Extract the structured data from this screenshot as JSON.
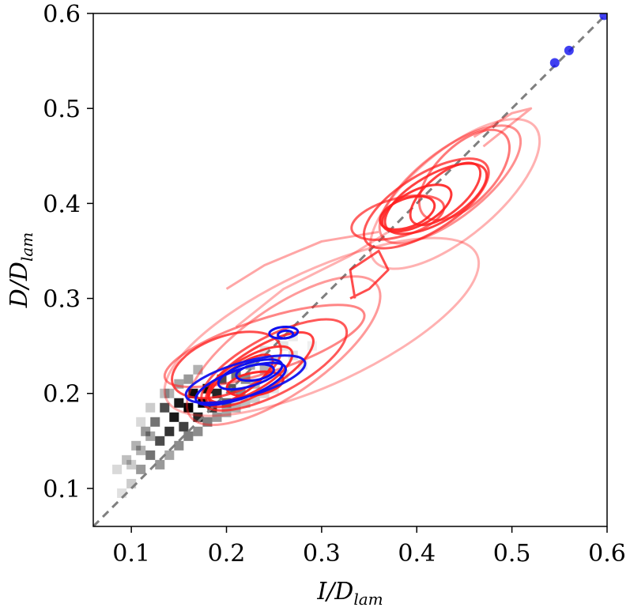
{
  "chart_data": {
    "type": "scatter",
    "xlabel": "I/D",
    "xlabel_subscript": "lam",
    "ylabel": "D/D",
    "ylabel_subscript": "lam",
    "xlim": [
      0.06,
      0.6
    ],
    "ylim": [
      0.06,
      0.6
    ],
    "xticks": [
      "0.1",
      "0.2",
      "0.3",
      "0.4",
      "0.5",
      "0.6"
    ],
    "yticks": [
      "0.1",
      "0.2",
      "0.3",
      "0.4",
      "0.5",
      "0.6"
    ],
    "grid": false,
    "legend": "none",
    "colors": {
      "reference": "#7f7f7f",
      "red": "#ff2020",
      "blue": "#1010ee",
      "density": "#000000"
    },
    "reference_line": {
      "style": "dashed",
      "points": [
        [
          0.06,
          0.06
        ],
        [
          0.6,
          0.6
        ]
      ]
    },
    "series": [
      {
        "kind": "density-heatmap",
        "color": "#000000",
        "cells": [
          [
            0.085,
            0.12,
            0.15
          ],
          [
            0.095,
            0.13,
            0.25
          ],
          [
            0.1,
            0.105,
            0.2
          ],
          [
            0.105,
            0.145,
            0.3
          ],
          [
            0.11,
            0.12,
            0.4
          ],
          [
            0.115,
            0.16,
            0.4
          ],
          [
            0.12,
            0.135,
            0.55
          ],
          [
            0.125,
            0.17,
            0.55
          ],
          [
            0.13,
            0.15,
            0.7
          ],
          [
            0.135,
            0.185,
            0.7
          ],
          [
            0.14,
            0.16,
            0.8
          ],
          [
            0.145,
            0.175,
            0.9
          ],
          [
            0.15,
            0.19,
            0.9
          ],
          [
            0.155,
            0.165,
            0.75
          ],
          [
            0.16,
            0.185,
            1.0
          ],
          [
            0.165,
            0.2,
            0.95
          ],
          [
            0.17,
            0.175,
            0.85
          ],
          [
            0.175,
            0.19,
            1.0
          ],
          [
            0.18,
            0.205,
            0.95
          ],
          [
            0.185,
            0.185,
            0.8
          ],
          [
            0.19,
            0.2,
            0.85
          ],
          [
            0.195,
            0.215,
            0.7
          ],
          [
            0.2,
            0.19,
            0.6
          ],
          [
            0.205,
            0.205,
            0.65
          ],
          [
            0.21,
            0.22,
            0.55
          ],
          [
            0.215,
            0.2,
            0.45
          ],
          [
            0.22,
            0.215,
            0.45
          ],
          [
            0.225,
            0.23,
            0.35
          ],
          [
            0.23,
            0.21,
            0.3
          ],
          [
            0.24,
            0.225,
            0.3
          ],
          [
            0.25,
            0.235,
            0.2
          ],
          [
            0.26,
            0.22,
            0.15
          ],
          [
            0.27,
            0.24,
            0.12
          ],
          [
            0.28,
            0.23,
            0.08
          ],
          [
            0.29,
            0.25,
            0.06
          ],
          [
            0.15,
            0.21,
            0.35
          ],
          [
            0.14,
            0.2,
            0.3
          ],
          [
            0.16,
            0.215,
            0.4
          ],
          [
            0.17,
            0.225,
            0.3
          ],
          [
            0.12,
            0.155,
            0.35
          ],
          [
            0.11,
            0.14,
            0.3
          ],
          [
            0.1,
            0.125,
            0.2
          ],
          [
            0.09,
            0.095,
            0.12
          ],
          [
            0.13,
            0.125,
            0.4
          ],
          [
            0.14,
            0.135,
            0.35
          ],
          [
            0.15,
            0.145,
            0.45
          ],
          [
            0.16,
            0.155,
            0.5
          ],
          [
            0.17,
            0.16,
            0.45
          ],
          [
            0.18,
            0.17,
            0.5
          ],
          [
            0.19,
            0.175,
            0.4
          ],
          [
            0.2,
            0.18,
            0.35
          ],
          [
            0.21,
            0.185,
            0.3
          ],
          [
            0.22,
            0.19,
            0.25
          ],
          [
            0.23,
            0.195,
            0.2
          ],
          [
            0.24,
            0.2,
            0.15
          ],
          [
            0.25,
            0.205,
            0.1
          ],
          [
            0.24,
            0.245,
            0.12
          ],
          [
            0.26,
            0.25,
            0.1
          ],
          [
            0.27,
            0.26,
            0.08
          ],
          [
            0.12,
            0.185,
            0.2
          ],
          [
            0.11,
            0.17,
            0.15
          ],
          [
            0.135,
            0.2,
            0.25
          ]
        ]
      },
      {
        "kind": "contours",
        "color": "#ff2020",
        "curves": [
          {
            "center": [
              0.25,
              0.23
            ],
            "rx": 0.085,
            "ry": 0.03,
            "rot": 28,
            "opacity": 0.75
          },
          {
            "center": [
              0.235,
              0.225
            ],
            "rx": 0.065,
            "ry": 0.022,
            "rot": 32,
            "opacity": 0.85
          },
          {
            "center": [
              0.225,
              0.22
            ],
            "rx": 0.05,
            "ry": 0.018,
            "rot": 30,
            "opacity": 0.9
          },
          {
            "center": [
              0.215,
              0.215
            ],
            "rx": 0.04,
            "ry": 0.014,
            "rot": 35,
            "opacity": 0.95
          },
          {
            "center": [
              0.23,
              0.21
            ],
            "rx": 0.03,
            "ry": 0.012,
            "rot": 10,
            "opacity": 0.95
          },
          {
            "center": [
              0.24,
              0.25
            ],
            "rx": 0.11,
            "ry": 0.028,
            "rot": 18,
            "opacity": 0.55
          },
          {
            "center": [
              0.2,
              0.23
            ],
            "rx": 0.06,
            "ry": 0.03,
            "rot": 20,
            "opacity": 0.8
          },
          {
            "center": [
              0.3,
              0.27
            ],
            "rx": 0.18,
            "ry": 0.06,
            "rot": 25,
            "opacity": 0.35
          },
          {
            "center": [
              0.26,
              0.245
            ],
            "rx": 0.12,
            "ry": 0.045,
            "rot": 35,
            "opacity": 0.45
          },
          {
            "center": [
              0.41,
              0.4
            ],
            "rx": 0.075,
            "ry": 0.03,
            "rot": 32,
            "opacity": 0.75
          },
          {
            "center": [
              0.42,
              0.405
            ],
            "rx": 0.06,
            "ry": 0.025,
            "rot": 30,
            "opacity": 0.85
          },
          {
            "center": [
              0.4,
              0.395
            ],
            "rx": 0.04,
            "ry": 0.018,
            "rot": 28,
            "opacity": 0.9
          },
          {
            "center": [
              0.43,
              0.41
            ],
            "rx": 0.045,
            "ry": 0.02,
            "rot": 40,
            "opacity": 0.85
          },
          {
            "center": [
              0.39,
              0.39
            ],
            "rx": 0.03,
            "ry": 0.015,
            "rot": 20,
            "opacity": 0.9
          },
          {
            "center": [
              0.435,
              0.42
            ],
            "rx": 0.09,
            "ry": 0.035,
            "rot": 38,
            "opacity": 0.5
          },
          {
            "center": [
              0.44,
              0.41
            ],
            "rx": 0.11,
            "ry": 0.045,
            "rot": 40,
            "opacity": 0.35
          },
          {
            "center": [
              0.45,
              0.43
            ],
            "rx": 0.06,
            "ry": 0.03,
            "rot": 45,
            "opacity": 0.6
          },
          {
            "center": [
              0.38,
              0.385
            ],
            "rx": 0.05,
            "ry": 0.02,
            "rot": 15,
            "opacity": 0.7
          }
        ],
        "paths": [
          {
            "points": [
              [
                0.21,
                0.27
              ],
              [
                0.26,
                0.31
              ],
              [
                0.33,
                0.345
              ],
              [
                0.37,
                0.37
              ]
            ],
            "opacity": 0.35
          },
          {
            "points": [
              [
                0.335,
                0.3
              ],
              [
                0.33,
                0.33
              ],
              [
                0.36,
                0.35
              ],
              [
                0.37,
                0.33
              ],
              [
                0.35,
                0.31
              ],
              [
                0.33,
                0.3
              ]
            ],
            "opacity": 0.8
          },
          {
            "points": [
              [
                0.2,
                0.31
              ],
              [
                0.24,
                0.335
              ],
              [
                0.3,
                0.36
              ],
              [
                0.36,
                0.37
              ]
            ],
            "opacity": 0.4
          },
          {
            "points": [
              [
                0.46,
                0.47
              ],
              [
                0.5,
                0.495
              ],
              [
                0.52,
                0.5
              ],
              [
                0.47,
                0.46
              ]
            ],
            "opacity": 0.4
          }
        ]
      },
      {
        "kind": "contours",
        "color": "#1010ee",
        "curves": [
          {
            "center": [
              0.22,
              0.215
            ],
            "rx": 0.065,
            "ry": 0.018,
            "rot": 16,
            "opacity": 0.95
          },
          {
            "center": [
              0.215,
              0.21
            ],
            "rx": 0.05,
            "ry": 0.015,
            "rot": 20,
            "opacity": 1.0
          },
          {
            "center": [
              0.225,
              0.22
            ],
            "rx": 0.035,
            "ry": 0.012,
            "rot": 18,
            "opacity": 1.0
          },
          {
            "center": [
              0.23,
              0.222
            ],
            "rx": 0.02,
            "ry": 0.008,
            "rot": 10,
            "opacity": 1.0
          },
          {
            "center": [
              0.26,
              0.264
            ],
            "rx": 0.015,
            "ry": 0.006,
            "rot": 5,
            "opacity": 1.0
          },
          {
            "center": [
              0.262,
              0.262
            ],
            "rx": 0.008,
            "ry": 0.004,
            "rot": 5,
            "opacity": 1.0
          }
        ],
        "points": [
          [
            0.545,
            0.548
          ],
          [
            0.56,
            0.561
          ],
          [
            0.597,
            0.598
          ]
        ]
      }
    ]
  }
}
